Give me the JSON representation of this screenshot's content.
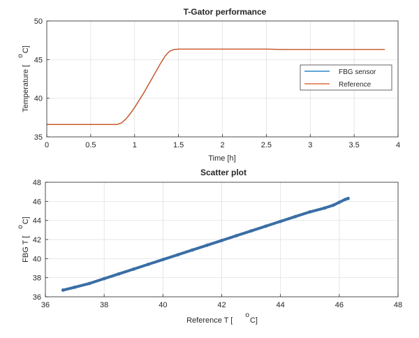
{
  "chart_data": [
    {
      "type": "line",
      "title": "T-Gator performance",
      "xlabel": "Time [h]",
      "ylabel": "Temperature [",
      "ylabel_unit_sup": "o",
      "ylabel_unit": "C]",
      "xlim": [
        0,
        4
      ],
      "ylim": [
        35,
        50
      ],
      "xticks": [
        0,
        0.5,
        1,
        1.5,
        2,
        2.5,
        3,
        3.5,
        4
      ],
      "yticks": [
        35,
        40,
        45,
        50
      ],
      "grid": true,
      "legend_position": "right",
      "colors": {
        "fbg": "#0072BD",
        "reference": "#D95319"
      },
      "series": [
        {
          "name": "FBG sensor",
          "x": [
            0,
            0.2,
            0.4,
            0.6,
            0.8,
            0.85,
            0.9,
            0.95,
            1.0,
            1.05,
            1.1,
            1.15,
            1.2,
            1.25,
            1.3,
            1.35,
            1.4,
            1.45,
            1.5,
            1.75,
            2.0,
            2.25,
            2.5,
            2.75,
            3.0,
            3.25,
            3.5,
            3.75,
            3.85
          ],
          "y": [
            36.6,
            36.6,
            36.6,
            36.6,
            36.6,
            36.8,
            37.3,
            38.0,
            38.8,
            39.7,
            40.6,
            41.6,
            42.6,
            43.6,
            44.6,
            45.5,
            46.1,
            46.3,
            46.35,
            46.35,
            46.35,
            46.35,
            46.35,
            46.3,
            46.3,
            46.3,
            46.3,
            46.3,
            46.3
          ]
        },
        {
          "name": "Reference",
          "x": [
            0,
            0.2,
            0.4,
            0.6,
            0.8,
            0.85,
            0.9,
            0.95,
            1.0,
            1.05,
            1.1,
            1.15,
            1.2,
            1.25,
            1.3,
            1.35,
            1.4,
            1.45,
            1.5,
            1.75,
            2.0,
            2.25,
            2.5,
            2.75,
            3.0,
            3.25,
            3.5,
            3.75,
            3.85
          ],
          "y": [
            36.6,
            36.6,
            36.6,
            36.6,
            36.6,
            36.8,
            37.3,
            38.0,
            38.8,
            39.7,
            40.6,
            41.6,
            42.6,
            43.6,
            44.6,
            45.5,
            46.1,
            46.3,
            46.35,
            46.35,
            46.35,
            46.35,
            46.35,
            46.3,
            46.3,
            46.3,
            46.3,
            46.3,
            46.3
          ]
        }
      ]
    },
    {
      "type": "scatter",
      "title": "Scatter plot",
      "xlabel": "Reference T [",
      "xlabel_unit_sup": "o",
      "xlabel_unit": "C]",
      "ylabel": "FBG T [",
      "ylabel_unit_sup": "o",
      "ylabel_unit": "C]",
      "xlim": [
        36,
        48
      ],
      "ylim": [
        36,
        48
      ],
      "xticks": [
        36,
        38,
        40,
        42,
        44,
        46,
        48
      ],
      "yticks": [
        36,
        38,
        40,
        42,
        44,
        46,
        48
      ],
      "grid": true,
      "color": "#3A6EA5",
      "x": [
        36.6,
        37.0,
        37.5,
        38.0,
        38.5,
        39.0,
        39.5,
        40.0,
        40.5,
        41.0,
        41.5,
        42.0,
        42.5,
        43.0,
        43.5,
        44.0,
        44.5,
        45.0,
        45.5,
        45.8,
        46.0,
        46.2,
        46.3
      ],
      "y": [
        36.7,
        37.0,
        37.4,
        37.9,
        38.4,
        38.9,
        39.4,
        39.9,
        40.4,
        40.9,
        41.4,
        41.9,
        42.4,
        42.9,
        43.4,
        43.9,
        44.4,
        44.9,
        45.3,
        45.6,
        45.9,
        46.2,
        46.3
      ]
    }
  ]
}
